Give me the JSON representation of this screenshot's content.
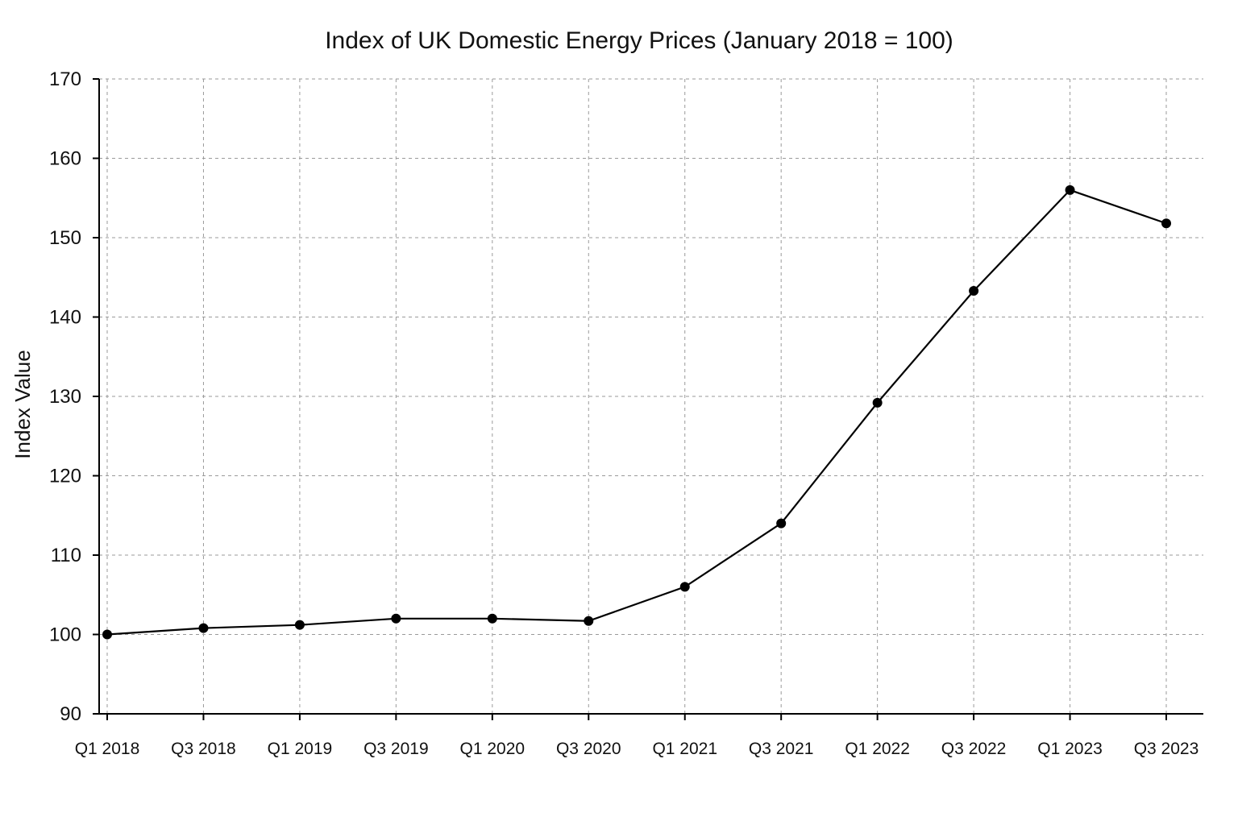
{
  "chart_data": {
    "type": "line",
    "title": "Index of UK Domestic Energy Prices (January 2018 = 100)",
    "xlabel": "",
    "ylabel": "Index Value",
    "categories": [
      "Q1 2018",
      "Q3 2018",
      "Q1 2019",
      "Q3 2019",
      "Q1 2020",
      "Q3 2020",
      "Q1 2021",
      "Q3 2021",
      "Q1 2022",
      "Q3 2022",
      "Q1 2023",
      "Q3 2023"
    ],
    "values": [
      100.0,
      100.8,
      101.2,
      102.0,
      102.0,
      101.7,
      106.0,
      114.0,
      129.2,
      143.3,
      156.0,
      151.8
    ],
    "ylim": [
      90,
      170
    ],
    "yticks": [
      90,
      100,
      110,
      120,
      130,
      140,
      150,
      160,
      170
    ],
    "grid": true,
    "colors": {
      "line": "#000000",
      "marker": "#000000",
      "grid": "#9a9a9a"
    }
  }
}
